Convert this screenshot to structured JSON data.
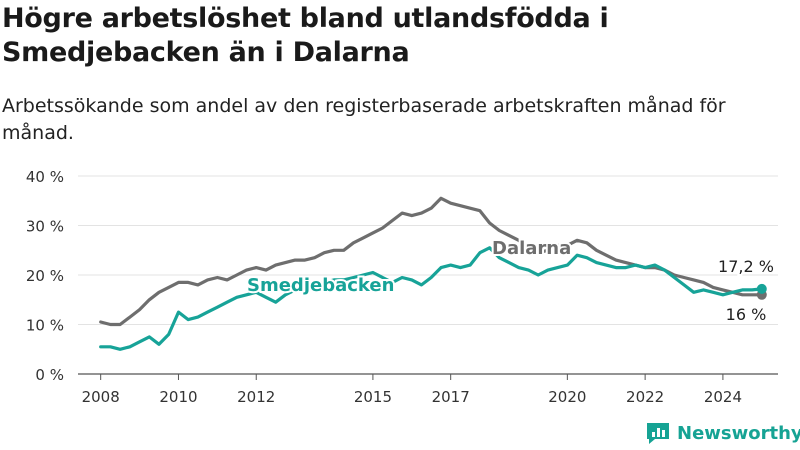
{
  "title": "Högre arbetslöshet bland utlandsfödda i Smedjebacken än i Dalarna",
  "subtitle": "Arbetssökande som andel av den registerbaserade arbetskraften månad för månad.",
  "brand": {
    "name": "Newsworthy",
    "icon": "newsworthy-logo-icon",
    "color": "#16a394"
  },
  "chart_data": {
    "type": "line",
    "grid": "horizontal",
    "ylim": [
      0,
      40
    ],
    "yticks": [
      0,
      10,
      20,
      30,
      40
    ],
    "ytick_labels": [
      "0 %",
      "10 %",
      "20 %",
      "30 %",
      "40 %"
    ],
    "xlim": [
      "2007-06",
      "2025-06"
    ],
    "xticks": [
      "2008",
      "2010",
      "2012",
      "2015",
      "2017",
      "2020",
      "2022",
      "2024"
    ],
    "end_labels": [
      {
        "series": "Smedjebacken",
        "text": "17,2 %"
      },
      {
        "series": "Dalarna",
        "text": "16 %"
      }
    ],
    "series": [
      {
        "name": "Dalarna",
        "color": "#6e6e6e",
        "points": [
          [
            "2008-01",
            10.5
          ],
          [
            "2008-04",
            10.0
          ],
          [
            "2008-07",
            10.0
          ],
          [
            "2008-10",
            11.5
          ],
          [
            "2009-01",
            13.0
          ],
          [
            "2009-04",
            15.0
          ],
          [
            "2009-07",
            16.5
          ],
          [
            "2009-10",
            17.5
          ],
          [
            "2010-01",
            18.5
          ],
          [
            "2010-04",
            18.5
          ],
          [
            "2010-07",
            18.0
          ],
          [
            "2010-10",
            19.0
          ],
          [
            "2011-01",
            19.5
          ],
          [
            "2011-04",
            19.0
          ],
          [
            "2011-07",
            20.0
          ],
          [
            "2011-10",
            21.0
          ],
          [
            "2012-01",
            21.5
          ],
          [
            "2012-04",
            21.0
          ],
          [
            "2012-07",
            22.0
          ],
          [
            "2012-10",
            22.5
          ],
          [
            "2013-01",
            23.0
          ],
          [
            "2013-04",
            23.0
          ],
          [
            "2013-07",
            23.5
          ],
          [
            "2013-10",
            24.5
          ],
          [
            "2014-01",
            25.0
          ],
          [
            "2014-04",
            25.0
          ],
          [
            "2014-07",
            26.5
          ],
          [
            "2014-10",
            27.5
          ],
          [
            "2015-01",
            28.5
          ],
          [
            "2015-04",
            29.5
          ],
          [
            "2015-07",
            31.0
          ],
          [
            "2015-10",
            32.5
          ],
          [
            "2016-01",
            32.0
          ],
          [
            "2016-04",
            32.5
          ],
          [
            "2016-07",
            33.5
          ],
          [
            "2016-10",
            35.5
          ],
          [
            "2017-01",
            34.5
          ],
          [
            "2017-04",
            34.0
          ],
          [
            "2017-07",
            33.5
          ],
          [
            "2017-10",
            33.0
          ],
          [
            "2018-01",
            30.5
          ],
          [
            "2018-04",
            29.0
          ],
          [
            "2018-07",
            28.0
          ],
          [
            "2018-10",
            27.0
          ],
          [
            "2019-01",
            25.5
          ],
          [
            "2019-04",
            24.5
          ],
          [
            "2019-07",
            25.0
          ],
          [
            "2019-10",
            26.0
          ],
          [
            "2020-01",
            26.0
          ],
          [
            "2020-04",
            27.0
          ],
          [
            "2020-07",
            26.5
          ],
          [
            "2020-10",
            25.0
          ],
          [
            "2021-01",
            24.0
          ],
          [
            "2021-04",
            23.0
          ],
          [
            "2021-07",
            22.5
          ],
          [
            "2021-10",
            22.0
          ],
          [
            "2022-01",
            21.5
          ],
          [
            "2022-04",
            21.5
          ],
          [
            "2022-07",
            21.0
          ],
          [
            "2022-10",
            20.0
          ],
          [
            "2023-01",
            19.5
          ],
          [
            "2023-04",
            19.0
          ],
          [
            "2023-07",
            18.5
          ],
          [
            "2023-10",
            17.5
          ],
          [
            "2024-01",
            17.0
          ],
          [
            "2024-04",
            16.5
          ],
          [
            "2024-07",
            16.0
          ],
          [
            "2024-10",
            16.0
          ],
          [
            "2025-01",
            16.0
          ]
        ]
      },
      {
        "name": "Smedjebacken",
        "color": "#17a398",
        "points": [
          [
            "2008-01",
            5.5
          ],
          [
            "2008-04",
            5.5
          ],
          [
            "2008-07",
            5.0
          ],
          [
            "2008-10",
            5.5
          ],
          [
            "2009-01",
            6.5
          ],
          [
            "2009-04",
            7.5
          ],
          [
            "2009-07",
            6.0
          ],
          [
            "2009-10",
            8.0
          ],
          [
            "2010-01",
            12.5
          ],
          [
            "2010-04",
            11.0
          ],
          [
            "2010-07",
            11.5
          ],
          [
            "2010-10",
            12.5
          ],
          [
            "2011-01",
            13.5
          ],
          [
            "2011-04",
            14.5
          ],
          [
            "2011-07",
            15.5
          ],
          [
            "2011-10",
            16.0
          ],
          [
            "2012-01",
            16.5
          ],
          [
            "2012-04",
            15.5
          ],
          [
            "2012-07",
            14.5
          ],
          [
            "2012-10",
            16.0
          ],
          [
            "2013-01",
            17.0
          ],
          [
            "2013-04",
            17.5
          ],
          [
            "2013-07",
            18.0
          ],
          [
            "2013-10",
            18.5
          ],
          [
            "2014-01",
            19.0
          ],
          [
            "2014-04",
            19.0
          ],
          [
            "2014-07",
            19.5
          ],
          [
            "2014-10",
            20.0
          ],
          [
            "2015-01",
            20.5
          ],
          [
            "2015-04",
            19.5
          ],
          [
            "2015-07",
            18.5
          ],
          [
            "2015-10",
            19.5
          ],
          [
            "2016-01",
            19.0
          ],
          [
            "2016-04",
            18.0
          ],
          [
            "2016-07",
            19.5
          ],
          [
            "2016-10",
            21.5
          ],
          [
            "2017-01",
            22.0
          ],
          [
            "2017-04",
            21.5
          ],
          [
            "2017-07",
            22.0
          ],
          [
            "2017-10",
            24.5
          ],
          [
            "2018-01",
            25.5
          ],
          [
            "2018-04",
            23.5
          ],
          [
            "2018-07",
            22.5
          ],
          [
            "2018-10",
            21.5
          ],
          [
            "2019-01",
            21.0
          ],
          [
            "2019-04",
            20.0
          ],
          [
            "2019-07",
            21.0
          ],
          [
            "2019-10",
            21.5
          ],
          [
            "2020-01",
            22.0
          ],
          [
            "2020-04",
            24.0
          ],
          [
            "2020-07",
            23.5
          ],
          [
            "2020-10",
            22.5
          ],
          [
            "2021-01",
            22.0
          ],
          [
            "2021-04",
            21.5
          ],
          [
            "2021-07",
            21.5
          ],
          [
            "2021-10",
            22.0
          ],
          [
            "2022-01",
            21.5
          ],
          [
            "2022-04",
            22.0
          ],
          [
            "2022-07",
            21.0
          ],
          [
            "2022-10",
            19.5
          ],
          [
            "2023-01",
            18.0
          ],
          [
            "2023-04",
            16.5
          ],
          [
            "2023-07",
            17.0
          ],
          [
            "2023-10",
            16.5
          ],
          [
            "2024-01",
            16.0
          ],
          [
            "2024-04",
            16.5
          ],
          [
            "2024-07",
            17.0
          ],
          [
            "2024-10",
            17.0
          ],
          [
            "2025-01",
            17.2
          ]
        ]
      }
    ]
  }
}
